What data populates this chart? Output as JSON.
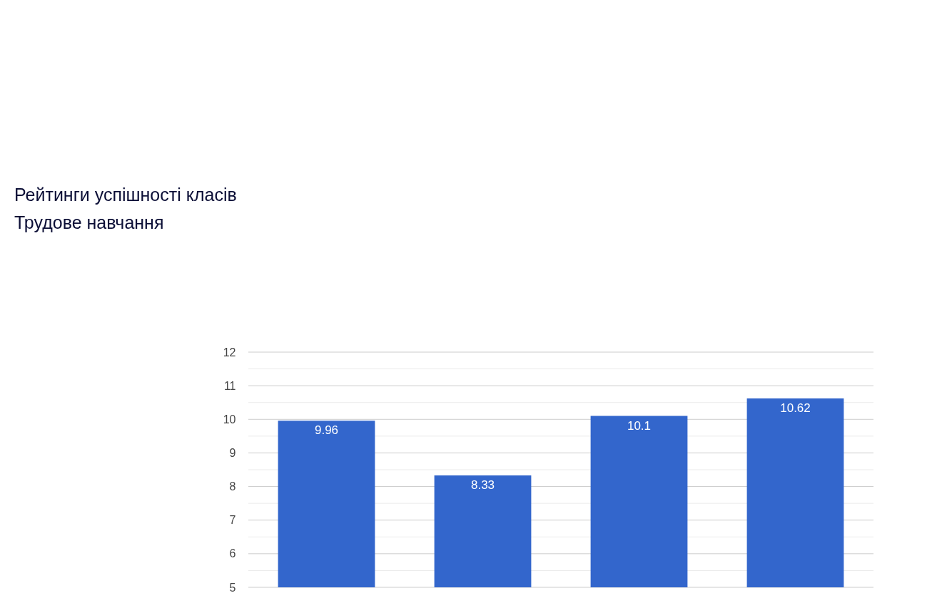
{
  "chart_data": {
    "type": "bar",
    "title": "Рейтинги успішності класів",
    "subtitle": "Трудове навчання",
    "categories": [
      null,
      null,
      null,
      null
    ],
    "values": [
      9.96,
      8.33,
      10.1,
      10.62
    ],
    "color": "#3366cc",
    "ylim": [
      5,
      12
    ],
    "yticks": [
      5,
      {
        "value": 5.5,
        "label": null
      },
      6,
      {
        "value": 6.5,
        "label": null
      },
      7,
      {
        "value": 7.5,
        "label": null
      },
      8,
      {
        "value": 8.5,
        "label": null
      },
      9,
      {
        "value": 9.5,
        "label": null
      },
      10,
      {
        "value": 10.5,
        "label": null
      },
      11,
      {
        "value": 11.5,
        "label": null
      },
      12
    ],
    "grid": "y",
    "data_labels": true,
    "tick_labels": "y"
  }
}
